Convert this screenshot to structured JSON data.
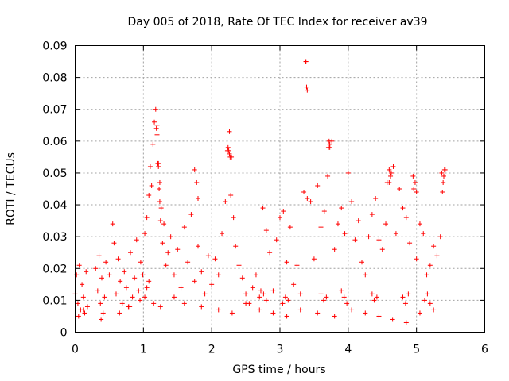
{
  "chart_data": {
    "type": "scatter",
    "title": "Day 005 of 2018, Rate Of TEC Index for receiver av39",
    "xlabel": "GPS time / hours",
    "ylabel": "ROTI / TECUs",
    "xlim": [
      0,
      6
    ],
    "ylim": [
      0,
      0.09
    ],
    "xticks": [
      0,
      1,
      2,
      3,
      4,
      5,
      6
    ],
    "xtick_labels": [
      "0",
      "1",
      "2",
      "3",
      "4",
      "5",
      "6"
    ],
    "yticks": [
      0,
      0.01,
      0.02,
      0.03,
      0.04,
      0.05,
      0.06,
      0.07,
      0.08,
      0.09
    ],
    "ytick_labels": [
      "0",
      "0.01",
      "0.02",
      "0.03",
      "0.04",
      "0.05",
      "0.06",
      "0.07",
      "0.08",
      "0.09"
    ],
    "grid": true,
    "marker": "+",
    "color": "#ff0000",
    "series": [
      {
        "name": "ROTI",
        "x": [
          0.0,
          0.02,
          0.04,
          0.06,
          0.08,
          0.1,
          0.12,
          0.14,
          0.16,
          0.18,
          0.33,
          0.35,
          0.37,
          0.39,
          0.41,
          0.43,
          0.55,
          0.57,
          0.6,
          0.63,
          0.66,
          0.69,
          0.72,
          0.75,
          0.78,
          0.81,
          0.84,
          0.87,
          0.9,
          0.93,
          0.96,
          0.99,
          1.02,
          1.05,
          1.08,
          1.1,
          1.12,
          1.14,
          1.16,
          1.18,
          1.2,
          1.22,
          1.24,
          1.26,
          1.28,
          1.3,
          1.33,
          1.36,
          1.4,
          1.45,
          1.5,
          1.55,
          1.6,
          1.65,
          1.7,
          1.75,
          1.8,
          1.85,
          1.9,
          1.95,
          2.0,
          2.05,
          2.1,
          2.15,
          2.2,
          2.23,
          2.26,
          2.29,
          2.32,
          2.35,
          2.4,
          2.45,
          2.5,
          2.55,
          2.6,
          2.65,
          2.7,
          2.75,
          2.8,
          2.85,
          2.9,
          2.95,
          3.0,
          3.05,
          3.1,
          3.15,
          3.2,
          3.25,
          3.3,
          3.35,
          3.38,
          3.4,
          3.45,
          3.5,
          3.55,
          3.6,
          3.65,
          3.7,
          3.73,
          3.76,
          3.8,
          3.85,
          3.9,
          3.95,
          4.0,
          4.05,
          4.1,
          4.15,
          4.2,
          4.25,
          4.3,
          4.35,
          4.4,
          4.45,
          4.5,
          4.55,
          4.6,
          4.63,
          4.66,
          4.7,
          4.75,
          4.8,
          4.85,
          4.9,
          4.95,
          5.0,
          5.05,
          5.1,
          5.15,
          5.2,
          5.25,
          5.3,
          5.35,
          5.38,
          5.4,
          5.42,
          0.05,
          0.12,
          0.38,
          0.65,
          0.8,
          0.95,
          1.15,
          1.25,
          1.45,
          1.6,
          1.85,
          2.1,
          2.3,
          2.5,
          2.7,
          2.9,
          3.1,
          3.3,
          3.55,
          3.8,
          4.05,
          4.25,
          4.45,
          4.65,
          4.85,
          5.05,
          5.25,
          1.19,
          1.2,
          1.21,
          1.22,
          1.23,
          1.24,
          1.25,
          2.24,
          2.25,
          2.26,
          2.27,
          2.28,
          3.38,
          3.39,
          3.4,
          3.71,
          3.72,
          3.73,
          4.57,
          4.6,
          4.62,
          4.96,
          4.98,
          5.0,
          5.37,
          5.39,
          5.41,
          1.75,
          1.78,
          1.8,
          0.3,
          0.45,
          0.5,
          1.02,
          1.05,
          1.08,
          2.72,
          2.76,
          2.8,
          3.04,
          3.08,
          3.12,
          3.6,
          3.64,
          3.68,
          3.9,
          3.94,
          3.98,
          4.35,
          4.38,
          4.42,
          4.8,
          4.84,
          4.88,
          5.12,
          5.16,
          5.2
        ],
        "y": [
          0.012,
          0.018,
          0.009,
          0.021,
          0.007,
          0.015,
          0.011,
          0.006,
          0.019,
          0.008,
          0.013,
          0.024,
          0.009,
          0.017,
          0.006,
          0.011,
          0.034,
          0.028,
          0.012,
          0.023,
          0.016,
          0.009,
          0.019,
          0.014,
          0.008,
          0.025,
          0.011,
          0.017,
          0.029,
          0.013,
          0.022,
          0.018,
          0.031,
          0.036,
          0.043,
          0.052,
          0.046,
          0.059,
          0.066,
          0.07,
          0.062,
          0.053,
          0.047,
          0.039,
          0.028,
          0.034,
          0.021,
          0.025,
          0.03,
          0.018,
          0.026,
          0.014,
          0.033,
          0.022,
          0.037,
          0.016,
          0.027,
          0.019,
          0.012,
          0.024,
          0.015,
          0.023,
          0.018,
          0.031,
          0.041,
          0.057,
          0.063,
          0.055,
          0.036,
          0.027,
          0.021,
          0.017,
          0.012,
          0.009,
          0.014,
          0.018,
          0.011,
          0.039,
          0.032,
          0.025,
          0.013,
          0.029,
          0.036,
          0.038,
          0.022,
          0.033,
          0.015,
          0.021,
          0.012,
          0.044,
          0.085,
          0.076,
          0.041,
          0.023,
          0.046,
          0.033,
          0.038,
          0.049,
          0.058,
          0.06,
          0.026,
          0.034,
          0.039,
          0.031,
          0.05,
          0.041,
          0.029,
          0.035,
          0.022,
          0.018,
          0.03,
          0.037,
          0.042,
          0.029,
          0.026,
          0.034,
          0.047,
          0.05,
          0.052,
          0.031,
          0.045,
          0.039,
          0.036,
          0.028,
          0.049,
          0.023,
          0.034,
          0.031,
          0.018,
          0.021,
          0.027,
          0.024,
          0.03,
          0.044,
          0.049,
          0.051,
          0.005,
          0.007,
          0.004,
          0.006,
          0.008,
          0.01,
          0.009,
          0.008,
          0.011,
          0.009,
          0.008,
          0.007,
          0.006,
          0.009,
          0.007,
          0.006,
          0.005,
          0.007,
          0.006,
          0.005,
          0.007,
          0.006,
          0.005,
          0.004,
          0.003,
          0.006,
          0.007,
          0.064,
          0.065,
          0.053,
          0.052,
          0.045,
          0.041,
          0.035,
          0.058,
          0.057,
          0.056,
          0.055,
          0.043,
          0.085,
          0.077,
          0.042,
          0.058,
          0.06,
          0.059,
          0.047,
          0.051,
          0.049,
          0.045,
          0.047,
          0.044,
          0.05,
          0.047,
          0.051,
          0.051,
          0.047,
          0.042,
          0.02,
          0.022,
          0.018,
          0.011,
          0.014,
          0.016,
          0.013,
          0.012,
          0.01,
          0.009,
          0.011,
          0.01,
          0.012,
          0.01,
          0.011,
          0.013,
          0.011,
          0.009,
          0.012,
          0.01,
          0.011,
          0.011,
          0.009,
          0.012,
          0.01,
          0.012,
          0.009
        ]
      }
    ]
  }
}
